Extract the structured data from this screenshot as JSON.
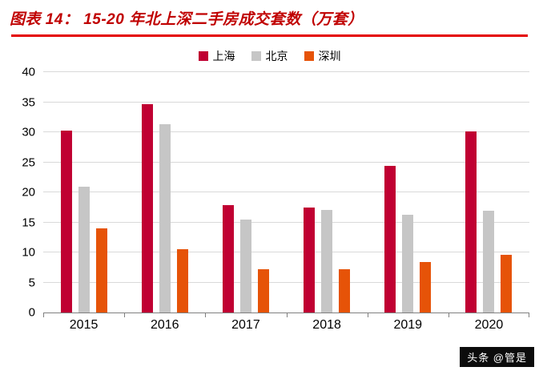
{
  "header": {
    "title": "图表 14：  15-20 年北上深二手房成交套数（万套）"
  },
  "watermark": "头条 @管是",
  "chart_data": {
    "type": "bar",
    "title": "15-20 年北上深二手房成交套数（万套）",
    "categories": [
      "2015",
      "2016",
      "2017",
      "2018",
      "2019",
      "2020"
    ],
    "series": [
      {
        "name": "上海",
        "color": "#c00032",
        "values": [
          30.3,
          34.7,
          17.9,
          17.5,
          24.4,
          30.1
        ]
      },
      {
        "name": "北京",
        "color": "#c6c6c6",
        "values": [
          21.0,
          31.4,
          15.5,
          17.1,
          16.3,
          17.0
        ]
      },
      {
        "name": "深圳",
        "color": "#e65308",
        "values": [
          14.0,
          10.5,
          7.2,
          7.2,
          8.4,
          9.6
        ]
      }
    ],
    "xlabel": "",
    "ylabel": "",
    "ylim": [
      0,
      40
    ],
    "ytick_step": 5,
    "grid": true,
    "legend_position": "top"
  }
}
